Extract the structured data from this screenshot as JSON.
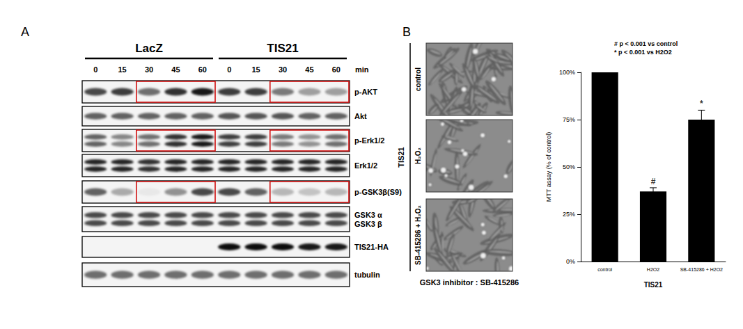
{
  "panel_a": {
    "letter": "A",
    "groups": [
      "LacZ",
      "TIS21"
    ],
    "times": [
      0,
      15,
      30,
      45,
      60
    ],
    "time_unit": "min",
    "boxed_times": [
      30,
      45,
      60
    ],
    "rows": [
      {
        "label": [
          "p-AKT"
        ],
        "bands": 1,
        "boxed": true,
        "intensity": [
          0.7,
          0.75,
          0.55,
          0.8,
          0.9,
          0.75,
          0.75,
          0.5,
          0.35,
          0.35
        ]
      },
      {
        "label": [
          "Akt"
        ],
        "bands": 1,
        "boxed": false,
        "intensity": [
          0.6,
          0.6,
          0.6,
          0.6,
          0.6,
          0.65,
          0.65,
          0.65,
          0.6,
          0.6
        ]
      },
      {
        "label": [
          "p-Erk1/2"
        ],
        "bands": 2,
        "boxed": true,
        "intensity": [
          0.6,
          0.45,
          0.55,
          0.8,
          0.9,
          0.75,
          0.75,
          0.5,
          0.4,
          0.55
        ]
      },
      {
        "label": [
          "Erk1/2"
        ],
        "bands": 2,
        "boxed": false,
        "intensity": [
          0.85,
          0.85,
          0.8,
          0.85,
          0.85,
          0.85,
          0.85,
          0.85,
          0.85,
          0.85
        ]
      },
      {
        "label": [
          "p-GSK3β(S9)"
        ],
        "bands": 1,
        "boxed": true,
        "intensity": [
          0.6,
          0.3,
          0.05,
          0.4,
          0.7,
          0.7,
          0.6,
          0.25,
          0.2,
          0.25
        ]
      },
      {
        "label": [
          "GSK3 α",
          "GSK3 β"
        ],
        "bands": 2,
        "boxed": false,
        "intensity": [
          0.7,
          0.7,
          0.7,
          0.7,
          0.7,
          0.7,
          0.7,
          0.7,
          0.7,
          0.7
        ]
      },
      {
        "label": [
          "TIS21-HA"
        ],
        "bands": 1,
        "boxed": false,
        "intensity": [
          0,
          0,
          0,
          0,
          0,
          0.95,
          0.95,
          0.95,
          0.9,
          0.9
        ]
      },
      {
        "label": [
          "tubulin"
        ],
        "bands": 1,
        "boxed": false,
        "intensity": [
          0.55,
          0.55,
          0.55,
          0.55,
          0.55,
          0.55,
          0.55,
          0.55,
          0.55,
          0.55
        ]
      }
    ]
  },
  "panel_b": {
    "letter": "B",
    "group_label": "TIS21",
    "images": [
      "control",
      "H₂O₂",
      "SB-415286 + H₂O₂"
    ],
    "caption": "GSK3 inhibitor : SB-415286"
  },
  "chart_data": {
    "type": "bar",
    "categories": [
      "control",
      "H2O2",
      "SB-415286 + H2O2"
    ],
    "values": [
      100,
      37,
      75
    ],
    "errors": [
      0,
      2,
      5
    ],
    "markers": [
      null,
      "#",
      "*"
    ],
    "color": "#000000",
    "x_label": "TIS21",
    "y_label": "MTT assay (% of control)",
    "annotations": [
      "# p < 0.001 vs control",
      "* p < 0.001 vs H2O2"
    ],
    "ylim": [
      0,
      100
    ],
    "yticks": [
      {
        "value": 0,
        "label": "0%"
      },
      {
        "value": 25,
        "label": "25%"
      },
      {
        "value": 50,
        "label": "50%"
      },
      {
        "value": 75,
        "label": "75%"
      },
      {
        "value": 100,
        "label": "100%"
      }
    ],
    "grid": false
  }
}
